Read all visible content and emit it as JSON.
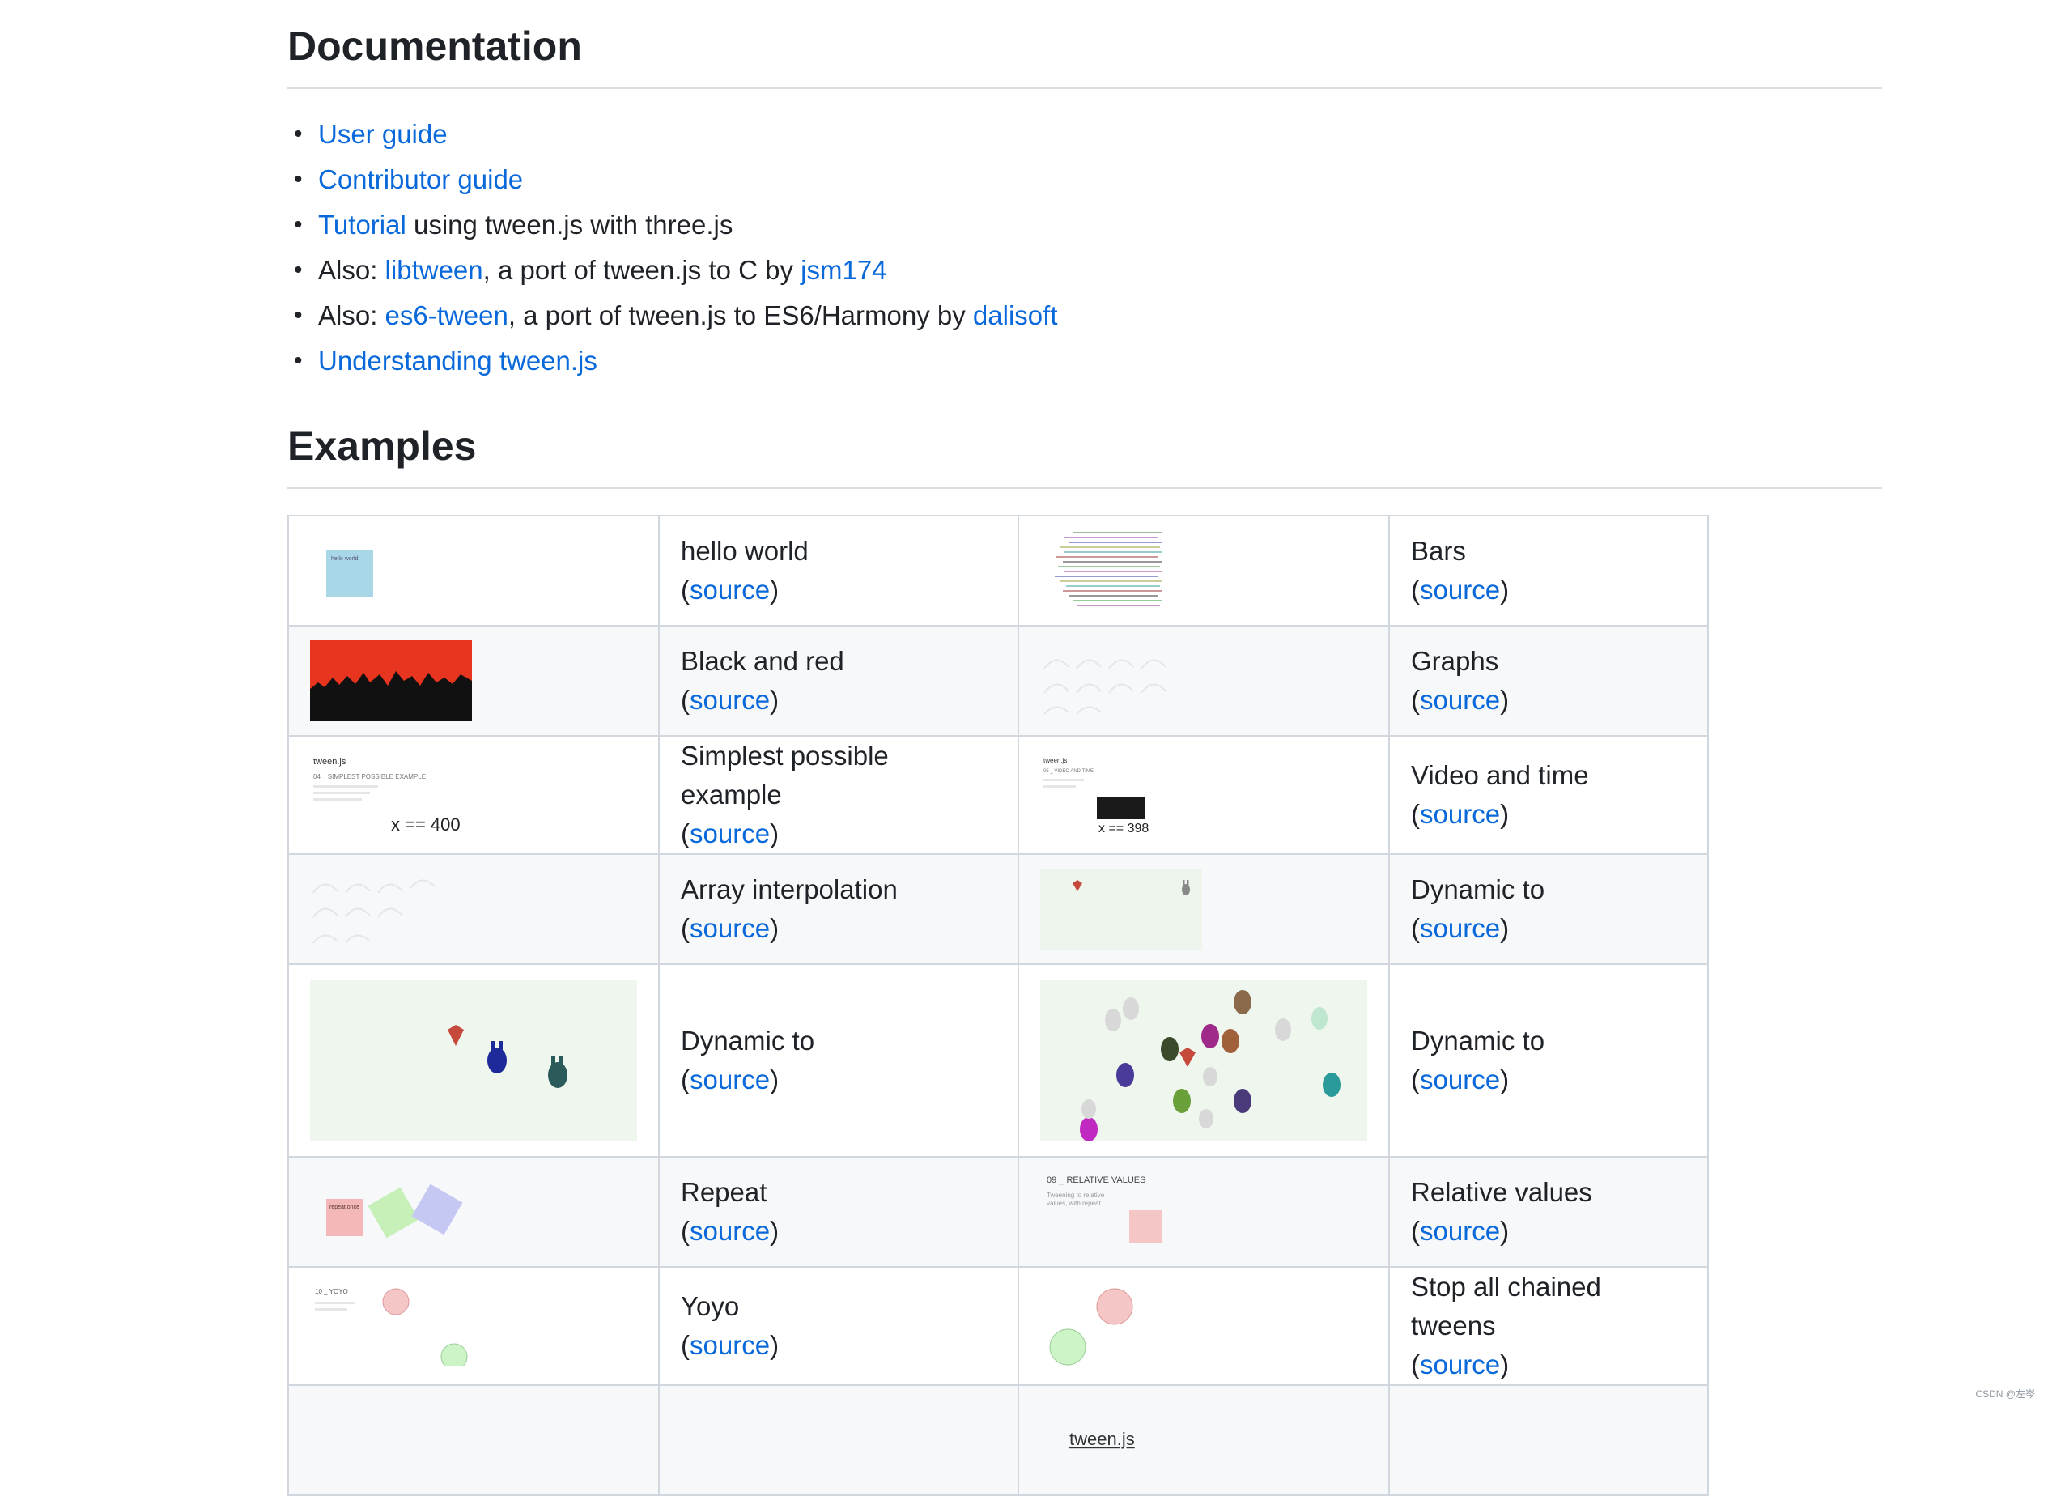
{
  "documentation": {
    "heading": "Documentation",
    "items": [
      {
        "link": "User guide",
        "text": ""
      },
      {
        "link": "Contributor guide",
        "text": ""
      },
      {
        "link": "Tutorial",
        "text": " using tween.js with three.js"
      },
      {
        "prefix": "Also: ",
        "link": "libtween",
        "text": ", a port of tween.js to C by ",
        "link2": "jsm174"
      },
      {
        "prefix": "Also: ",
        "link": "es6-tween",
        "text": ", a port of tween.js to ES6/Harmony by ",
        "link2": "dalisoft"
      },
      {
        "link": "Understanding tween.js",
        "text": ""
      }
    ]
  },
  "examples": {
    "heading": "Examples",
    "source_label": "source",
    "rows": [
      {
        "left": "hello world",
        "right": "Bars"
      },
      {
        "left": "Black and red",
        "right": "Graphs"
      },
      {
        "left": "Simplest possible example",
        "right": "Video and time"
      },
      {
        "left": "Array interpolation",
        "right": "Dynamic to"
      },
      {
        "left": "Dynamic to",
        "right": "Dynamic to"
      },
      {
        "left": "Repeat",
        "right": "Relative values"
      },
      {
        "left": "Yoyo",
        "right": "Stop all chained tweens"
      }
    ],
    "thumb_text": {
      "hello": "hello world",
      "tweenjs": "tween.js",
      "simplest_title": "04 _ SIMPLEST POSSIBLE EXAMPLE",
      "x400": "x == 400",
      "video_title": "05 _ VIDEO AND TIME",
      "x398": "x == 398",
      "repeat": "repeat once",
      "relative_title": "09 _ RELATIVE VALUES",
      "relative_desc1": "Tweening to relative",
      "relative_desc2": "values, with repeat.",
      "yoyo_title": "10 _ YOYO",
      "last_tween": "tween.js"
    }
  },
  "watermark": "CSDN @左岑"
}
